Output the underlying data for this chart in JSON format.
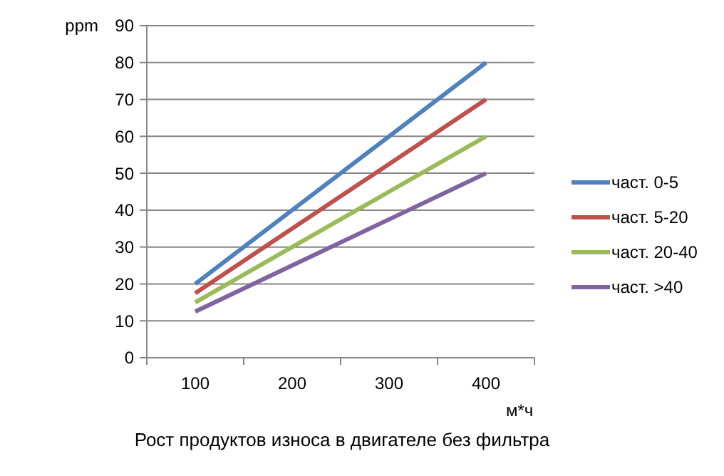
{
  "chart_data": {
    "type": "line",
    "title": "Рост продуктов износа в двигателе без фильтра",
    "ylabel": "ppm",
    "xlabel": "м*ч",
    "categories": [
      "100",
      "200",
      "300",
      "400"
    ],
    "ylim": [
      0,
      90
    ],
    "yticks": [
      0,
      10,
      20,
      30,
      40,
      50,
      60,
      70,
      80,
      90
    ],
    "grid": "y",
    "legend": "right",
    "marker": "none",
    "series": [
      {
        "name": "част. 0-5",
        "color": "#4f81bd",
        "values": [
          20,
          40,
          60,
          80
        ]
      },
      {
        "name": "част. 5-20",
        "color": "#c0504d",
        "values": [
          17.5,
          35,
          52.5,
          70
        ]
      },
      {
        "name": "част. 20-40",
        "color": "#9bbb59",
        "values": [
          15,
          30,
          45,
          60
        ]
      },
      {
        "name": "част. >40",
        "color": "#8064a2",
        "values": [
          12.5,
          25,
          37.5,
          50
        ]
      }
    ]
  }
}
